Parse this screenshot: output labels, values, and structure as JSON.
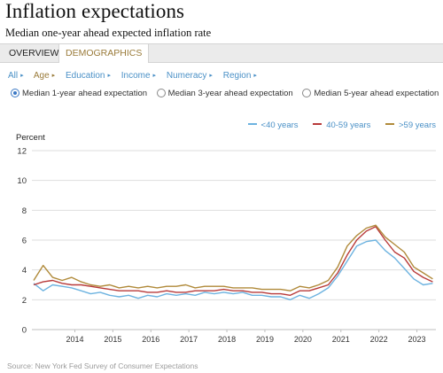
{
  "header": {
    "title": "Inflation expectations",
    "subtitle": "Median one-year ahead expected inflation rate"
  },
  "tabs": {
    "overview": "OVERVIEW",
    "demographics": "DEMOGRAPHICS"
  },
  "filters": [
    "All",
    "Age",
    "Education",
    "Income",
    "Numeracy",
    "Region"
  ],
  "filters_active": "Age",
  "radios": {
    "r1": "Median 1-year ahead expectation",
    "r2": "Median 3-year ahead expectation",
    "r3": "Median 5-year ahead expectation",
    "selected": "Median 1-year ahead expectation"
  },
  "colors": {
    "accent": "#3b78c4",
    "tab_active": "#9a7b3a",
    "link": "#4a90c6"
  },
  "source": "Source: New York Fed Survey of Consumer Expectations",
  "chart_data": {
    "type": "line",
    "ylabel": "Percent",
    "ylim": [
      0,
      12
    ],
    "yticks": [
      "0",
      "2",
      "4",
      "6",
      "8",
      "10",
      "12"
    ],
    "xticks": [
      "2014",
      "2015",
      "2016",
      "2017",
      "2018",
      "2019",
      "2020",
      "2021",
      "2022",
      "2023"
    ],
    "grid": true,
    "legend_position": "top-right",
    "series": [
      {
        "name": "<40 years",
        "color": "#6db3e0",
        "points": [
          [
            "2013-06",
            3.1
          ],
          [
            "2013-09",
            2.6
          ],
          [
            "2013-12",
            3.0
          ],
          [
            "2014-03",
            2.9
          ],
          [
            "2014-06",
            2.8
          ],
          [
            "2014-09",
            2.6
          ],
          [
            "2014-12",
            2.4
          ],
          [
            "2015-03",
            2.5
          ],
          [
            "2015-06",
            2.3
          ],
          [
            "2015-09",
            2.2
          ],
          [
            "2015-12",
            2.3
          ],
          [
            "2016-03",
            2.1
          ],
          [
            "2016-06",
            2.3
          ],
          [
            "2016-09",
            2.2
          ],
          [
            "2016-12",
            2.4
          ],
          [
            "2017-03",
            2.3
          ],
          [
            "2017-06",
            2.4
          ],
          [
            "2017-09",
            2.3
          ],
          [
            "2017-12",
            2.5
          ],
          [
            "2018-03",
            2.4
          ],
          [
            "2018-06",
            2.5
          ],
          [
            "2018-09",
            2.4
          ],
          [
            "2018-12",
            2.5
          ],
          [
            "2019-03",
            2.3
          ],
          [
            "2019-06",
            2.3
          ],
          [
            "2019-09",
            2.2
          ],
          [
            "2019-12",
            2.2
          ],
          [
            "2020-03",
            2.0
          ],
          [
            "2020-06",
            2.3
          ],
          [
            "2020-09",
            2.1
          ],
          [
            "2020-12",
            2.4
          ],
          [
            "2021-03",
            2.8
          ],
          [
            "2021-06",
            3.6
          ],
          [
            "2021-09",
            4.6
          ],
          [
            "2021-12",
            5.6
          ],
          [
            "2022-03",
            5.9
          ],
          [
            "2022-06",
            6.0
          ],
          [
            "2022-09",
            5.3
          ],
          [
            "2022-12",
            4.8
          ],
          [
            "2023-03",
            4.1
          ],
          [
            "2023-06",
            3.4
          ],
          [
            "2023-09",
            3.0
          ],
          [
            "2023-12",
            3.1
          ]
        ]
      },
      {
        "name": "40-59 years",
        "color": "#b83a3a",
        "points": [
          [
            "2013-06",
            3.0
          ],
          [
            "2013-09",
            3.2
          ],
          [
            "2013-12",
            3.3
          ],
          [
            "2014-03",
            3.1
          ],
          [
            "2014-06",
            3.0
          ],
          [
            "2014-09",
            3.0
          ],
          [
            "2014-12",
            2.9
          ],
          [
            "2015-03",
            2.8
          ],
          [
            "2015-06",
            2.7
          ],
          [
            "2015-09",
            2.6
          ],
          [
            "2015-12",
            2.6
          ],
          [
            "2016-03",
            2.6
          ],
          [
            "2016-06",
            2.5
          ],
          [
            "2016-09",
            2.5
          ],
          [
            "2016-12",
            2.6
          ],
          [
            "2017-03",
            2.5
          ],
          [
            "2017-06",
            2.5
          ],
          [
            "2017-09",
            2.6
          ],
          [
            "2017-12",
            2.6
          ],
          [
            "2018-03",
            2.6
          ],
          [
            "2018-06",
            2.7
          ],
          [
            "2018-09",
            2.6
          ],
          [
            "2018-12",
            2.6
          ],
          [
            "2019-03",
            2.5
          ],
          [
            "2019-06",
            2.5
          ],
          [
            "2019-09",
            2.4
          ],
          [
            "2019-12",
            2.4
          ],
          [
            "2020-03",
            2.3
          ],
          [
            "2020-06",
            2.6
          ],
          [
            "2020-09",
            2.6
          ],
          [
            "2020-12",
            2.8
          ],
          [
            "2021-03",
            3.0
          ],
          [
            "2021-06",
            3.8
          ],
          [
            "2021-09",
            5.0
          ],
          [
            "2021-12",
            6.0
          ],
          [
            "2022-03",
            6.6
          ],
          [
            "2022-06",
            6.9
          ],
          [
            "2022-09",
            6.0
          ],
          [
            "2022-12",
            5.2
          ],
          [
            "2023-03",
            4.8
          ],
          [
            "2023-06",
            3.9
          ],
          [
            "2023-09",
            3.5
          ],
          [
            "2023-12",
            3.2
          ]
        ]
      },
      {
        "name": ">59 years",
        "color": "#b08a3a",
        "points": [
          [
            "2013-06",
            3.3
          ],
          [
            "2013-09",
            4.3
          ],
          [
            "2013-12",
            3.5
          ],
          [
            "2014-03",
            3.3
          ],
          [
            "2014-06",
            3.5
          ],
          [
            "2014-09",
            3.2
          ],
          [
            "2014-12",
            3.0
          ],
          [
            "2015-03",
            2.9
          ],
          [
            "2015-06",
            3.0
          ],
          [
            "2015-09",
            2.8
          ],
          [
            "2015-12",
            2.9
          ],
          [
            "2016-03",
            2.8
          ],
          [
            "2016-06",
            2.9
          ],
          [
            "2016-09",
            2.8
          ],
          [
            "2016-12",
            2.9
          ],
          [
            "2017-03",
            2.9
          ],
          [
            "2017-06",
            3.0
          ],
          [
            "2017-09",
            2.8
          ],
          [
            "2017-12",
            2.9
          ],
          [
            "2018-03",
            2.9
          ],
          [
            "2018-06",
            2.9
          ],
          [
            "2018-09",
            2.8
          ],
          [
            "2018-12",
            2.8
          ],
          [
            "2019-03",
            2.8
          ],
          [
            "2019-06",
            2.7
          ],
          [
            "2019-09",
            2.7
          ],
          [
            "2019-12",
            2.7
          ],
          [
            "2020-03",
            2.6
          ],
          [
            "2020-06",
            2.9
          ],
          [
            "2020-09",
            2.8
          ],
          [
            "2020-12",
            3.0
          ],
          [
            "2021-03",
            3.3
          ],
          [
            "2021-06",
            4.2
          ],
          [
            "2021-09",
            5.6
          ],
          [
            "2021-12",
            6.3
          ],
          [
            "2022-03",
            6.8
          ],
          [
            "2022-06",
            7.0
          ],
          [
            "2022-09",
            6.2
          ],
          [
            "2022-12",
            5.7
          ],
          [
            "2023-03",
            5.2
          ],
          [
            "2023-06",
            4.2
          ],
          [
            "2023-09",
            3.8
          ],
          [
            "2023-12",
            3.4
          ]
        ]
      }
    ]
  }
}
